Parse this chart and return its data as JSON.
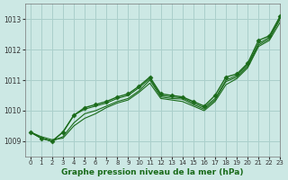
{
  "title": "Graphe pression niveau de la mer (hPa)",
  "background_color": "#cce8e4",
  "grid_color": "#aacfcb",
  "line_color": "#1a6b1a",
  "marker_color": "#1a6b1a",
  "xlim": [
    -0.5,
    23
  ],
  "ylim": [
    1008.5,
    1013.5
  ],
  "yticks": [
    1009,
    1010,
    1011,
    1012,
    1013
  ],
  "xticks": [
    0,
    1,
    2,
    3,
    4,
    5,
    6,
    7,
    8,
    9,
    10,
    11,
    12,
    13,
    14,
    15,
    16,
    17,
    18,
    19,
    20,
    21,
    22,
    23
  ],
  "series": [
    {
      "x": [
        0,
        1,
        2,
        3,
        4,
        5,
        6,
        7,
        8,
        9,
        10,
        11,
        12,
        13,
        14,
        15,
        16,
        17,
        18,
        19,
        20,
        21,
        22,
        23
      ],
      "y": [
        1009.3,
        1009.1,
        1009.0,
        1009.3,
        1009.85,
        1010.1,
        1010.2,
        1010.3,
        1010.45,
        1010.55,
        1010.8,
        1011.1,
        1010.55,
        1010.5,
        1010.45,
        1010.3,
        1010.15,
        1010.5,
        1011.1,
        1011.2,
        1011.55,
        1012.3,
        1012.45,
        1013.1
      ],
      "marker": "D",
      "markersize": 2.5,
      "linewidth": 1.0
    },
    {
      "x": [
        0,
        1,
        2,
        3,
        4,
        5,
        6,
        7,
        8,
        9,
        10,
        11,
        12,
        13,
        14,
        15,
        16,
        17,
        18,
        19,
        20,
        21,
        22,
        23
      ],
      "y": [
        1009.3,
        1009.1,
        1009.0,
        1009.3,
        1009.85,
        1010.05,
        1010.15,
        1010.25,
        1010.4,
        1010.5,
        1010.75,
        1011.05,
        1010.5,
        1010.45,
        1010.42,
        1010.25,
        1010.1,
        1010.4,
        1011.0,
        1011.15,
        1011.5,
        1012.2,
        1012.4,
        1013.05
      ],
      "marker": null,
      "markersize": 0,
      "linewidth": 0.8
    },
    {
      "x": [
        0,
        1,
        2,
        3,
        4,
        5,
        6,
        7,
        8,
        9,
        10,
        11,
        12,
        13,
        14,
        15,
        16,
        17,
        18,
        19,
        20,
        21,
        22,
        23
      ],
      "y": [
        1009.3,
        1009.1,
        1009.0,
        1009.15,
        1009.6,
        1009.9,
        1010.0,
        1010.15,
        1010.3,
        1010.4,
        1010.65,
        1011.0,
        1010.45,
        1010.4,
        1010.38,
        1010.2,
        1010.05,
        1010.35,
        1010.95,
        1011.1,
        1011.45,
        1012.15,
        1012.35,
        1013.0
      ],
      "marker": null,
      "markersize": 0,
      "linewidth": 0.8
    },
    {
      "x": [
        0,
        1,
        2,
        3,
        4,
        5,
        6,
        7,
        8,
        9,
        10,
        11,
        12,
        13,
        14,
        15,
        16,
        17,
        18,
        19,
        20,
        21,
        22,
        23
      ],
      "y": [
        1009.3,
        1009.15,
        1009.05,
        1009.1,
        1009.5,
        1009.75,
        1009.9,
        1010.1,
        1010.25,
        1010.35,
        1010.6,
        1010.9,
        1010.4,
        1010.35,
        1010.3,
        1010.15,
        1010.0,
        1010.3,
        1010.85,
        1011.05,
        1011.4,
        1012.1,
        1012.3,
        1012.9
      ],
      "marker": null,
      "markersize": 0,
      "linewidth": 0.8
    }
  ],
  "xlabel_fontsize": 6.5,
  "tick_fontsize": 5.5,
  "xtick_fontsize": 5.0
}
